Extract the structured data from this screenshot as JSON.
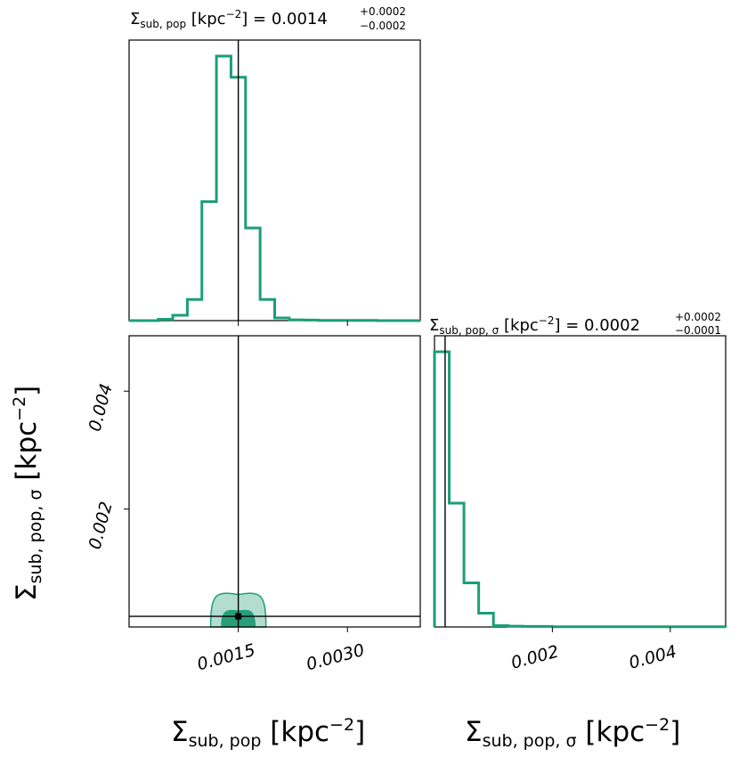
{
  "colors": {
    "series": "#1b9e77",
    "contour_outer": "#b3ddcf",
    "contour_inner": "#2a9e78",
    "truth": "#000000"
  },
  "panels": {
    "top_title": {
      "lhs_symbol": "Σ",
      "lhs_sub": "sub, pop",
      "lhs_unit": " [kpc",
      "lhs_exp": "−2",
      "lhs_close": "] = 0.0014",
      "plus": "+0.0002",
      "minus": "−0.0002"
    },
    "right_title": {
      "lhs_symbol": "Σ",
      "lhs_sub": "sub, pop, σ",
      "lhs_unit": " [kpc",
      "lhs_exp": "−2",
      "lhs_close": "] = 0.0002",
      "plus": "+0.0002",
      "minus": "−0.0001"
    },
    "xlabel_left": {
      "symbol": "Σ",
      "sub": "sub, pop",
      "unit": " [kpc",
      "exp": "−2",
      "close": "]"
    },
    "xlabel_right": {
      "symbol": "Σ",
      "sub": "sub, pop, σ",
      "unit": " [kpc",
      "exp": "−2",
      "close": "]"
    },
    "ylabel_left": {
      "symbol": "Σ",
      "sub": "sub, pop, σ",
      "unit": " [kpc",
      "exp": "−2",
      "close": "]"
    }
  },
  "chart_data": [
    {
      "type": "histogram",
      "panel": "marginal-x",
      "xlim": [
        0.0,
        0.004
      ],
      "ylim": [
        0,
        1.0
      ],
      "bin_edges": [
        0.0,
        0.0002,
        0.0004,
        0.0006,
        0.0008,
        0.001,
        0.0012,
        0.0014,
        0.0016,
        0.0018,
        0.002,
        0.0022,
        0.0024,
        0.0026,
        0.0028,
        0.003,
        0.0032,
        0.0034,
        0.0036,
        0.0038,
        0.004
      ],
      "counts": [
        0,
        0,
        0.005,
        0.02,
        0.08,
        0.45,
        1.0,
        0.92,
        0.35,
        0.08,
        0.01,
        0.003,
        0.002,
        0.001,
        0.001,
        0.001,
        0.001,
        0,
        0,
        0
      ],
      "truth_x": 0.0015,
      "xticks": [
        0.0015,
        0.003
      ]
    },
    {
      "type": "contour",
      "panel": "joint",
      "xlim": [
        0.0,
        0.004
      ],
      "ylim": [
        0.0,
        0.00494
      ],
      "median": [
        0.0015,
        0.00018
      ],
      "level_68": {
        "x_halfwidth": 0.00023,
        "y_max": 0.00018
      },
      "level_95": {
        "x_halfwidth": 0.00038,
        "y_max": 0.00055
      },
      "truth_x": 0.0015,
      "truth_y": 0.00018,
      "xticks": [
        0.0015,
        0.003
      ],
      "xtick_labels": [
        "0.0015",
        "0.0030"
      ],
      "yticks": [
        0.002,
        0.004
      ],
      "ytick_labels": [
        "0.002",
        "0.004"
      ]
    },
    {
      "type": "histogram",
      "panel": "marginal-y",
      "xlim": [
        0.0,
        0.00494
      ],
      "ylim": [
        0,
        1.0
      ],
      "bin_edges": [
        0.0,
        0.00025,
        0.0005,
        0.00075,
        0.001,
        0.00125,
        0.0015,
        0.00175,
        0.002,
        0.00225,
        0.0025,
        0.00275,
        0.003,
        0.00325,
        0.0035,
        0.00375,
        0.004,
        0.00425,
        0.0045,
        0.00475,
        0.00494
      ],
      "counts": [
        1.0,
        0.45,
        0.16,
        0.05,
        0.005,
        0.003,
        0.002,
        0.002,
        0.001,
        0.001,
        0.001,
        0.001,
        0.001,
        0.001,
        0.001,
        0.001,
        0.001,
        0.001,
        0.001,
        0.001
      ],
      "truth_x": 0.00018,
      "xticks": [
        0.002,
        0.004
      ],
      "xtick_labels": [
        "0.002",
        "0.004"
      ]
    }
  ]
}
